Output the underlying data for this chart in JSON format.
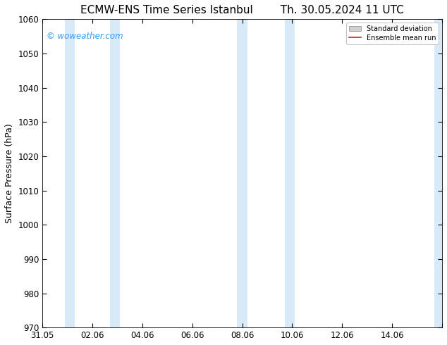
{
  "title_left": "ECMW-ENS Time Series Istanbul",
  "title_right": "Th. 30.05.2024 11 UTC",
  "ylabel": "Surface Pressure (hPa)",
  "ylim": [
    970,
    1060
  ],
  "yticks": [
    970,
    980,
    990,
    1000,
    1010,
    1020,
    1030,
    1040,
    1050,
    1060
  ],
  "xlim_start": 0.0,
  "xlim_end": 16.0,
  "xtick_positions": [
    0,
    2,
    4,
    6,
    8,
    10,
    12,
    14,
    16
  ],
  "xtick_labels": [
    "31.05",
    "02.06",
    "04.06",
    "06.06",
    "08.06",
    "10.06",
    "12.06",
    "14.06",
    ""
  ],
  "bg_color": "#ffffff",
  "plot_bg_color": "#ffffff",
  "shaded_bands": [
    {
      "x_start": 0.9,
      "x_end": 1.3,
      "color": "#d8eaf8"
    },
    {
      "x_start": 2.7,
      "x_end": 3.1,
      "color": "#d8eaf8"
    },
    {
      "x_start": 7.8,
      "x_end": 8.2,
      "color": "#d8eaf8"
    },
    {
      "x_start": 9.7,
      "x_end": 10.1,
      "color": "#d8eaf8"
    },
    {
      "x_start": 15.7,
      "x_end": 16.0,
      "color": "#d8eaf8"
    }
  ],
  "watermark_text": "© woweather.com",
  "watermark_color": "#3399ff",
  "legend_std_color": "#cccccc",
  "legend_mean_color": "#cc2222",
  "title_fontsize": 11,
  "label_fontsize": 9,
  "tick_fontsize": 8.5
}
